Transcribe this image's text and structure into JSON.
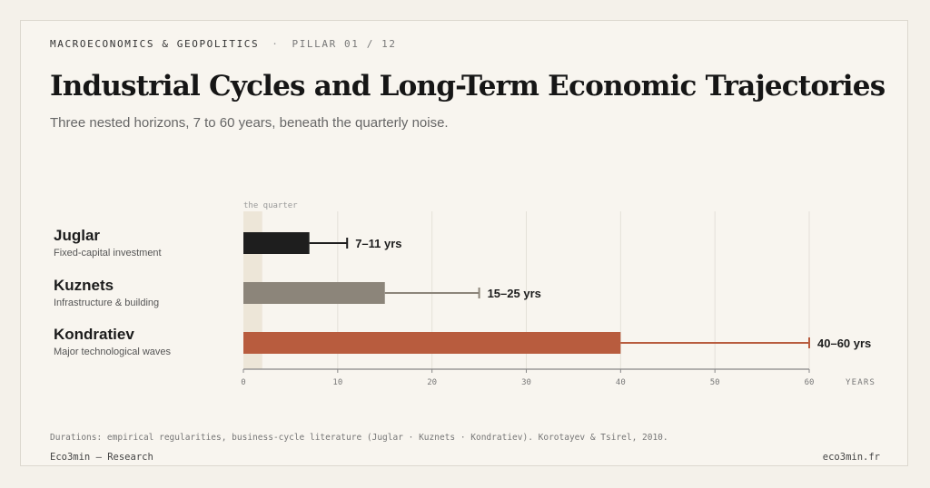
{
  "header": {
    "kicker": "MACROECONOMICS & GEOPOLITICS",
    "separator": "·",
    "pillar": "PILLAR 01 / 12",
    "title": "Industrial Cycles and Long-Term Economic Trajectories",
    "subtitle": "Three nested horizons, 7 to 60 years, beneath the quarterly noise."
  },
  "chart_data": {
    "type": "bar",
    "orientation": "horizontal",
    "xlabel": "YEARS",
    "xlim": [
      0,
      60
    ],
    "xticks": [
      0,
      10,
      20,
      30,
      40,
      50,
      60
    ],
    "grid": true,
    "highlight_band": {
      "label": "the quarter",
      "range": [
        0,
        2
      ]
    },
    "series": [
      {
        "name": "Juglar",
        "description": "Fixed-capital investment",
        "min": 7,
        "max": 11,
        "label": "7–11 yrs",
        "color": "#1e1e1e",
        "whisker_color": "#1e1e1e"
      },
      {
        "name": "Kuznets",
        "description": "Infrastructure & building",
        "min": 15,
        "max": 25,
        "label": "15–25 yrs",
        "color": "#8c857a",
        "whisker_color": "#8c857a"
      },
      {
        "name": "Kondratiev",
        "description": "Major technological waves",
        "min": 40,
        "max": 60,
        "label": "40–60 yrs",
        "color": "#b85c3e",
        "whisker_color": "#b85c3e"
      }
    ]
  },
  "footer": {
    "source": "Durations: empirical regularities, business-cycle literature (Juglar · Kuznets · Kondratiev). Korotayev & Tsirel, 2010.",
    "brand": "Eco3min — Research",
    "site": "eco3min.fr"
  }
}
